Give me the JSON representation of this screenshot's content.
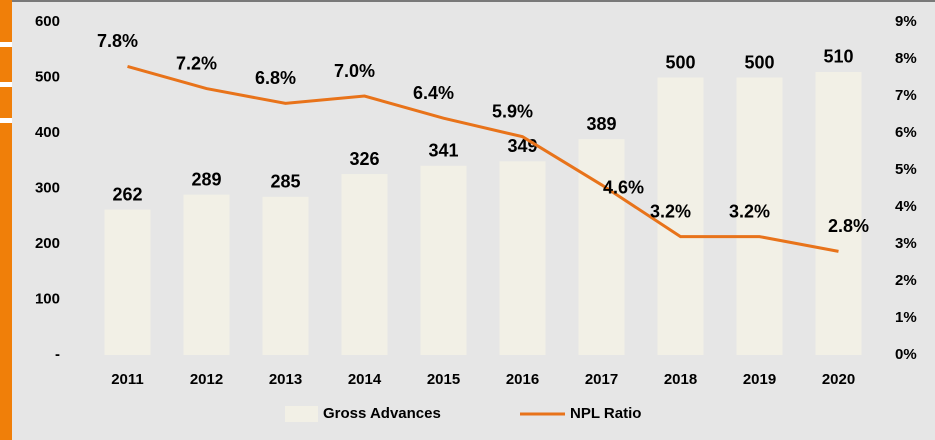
{
  "chart_data": {
    "type": "combo",
    "categories": [
      "2011",
      "2012",
      "2013",
      "2014",
      "2015",
      "2016",
      "2017",
      "2018",
      "2019",
      "2020"
    ],
    "series": [
      {
        "name": "Gross Advances",
        "type": "bar",
        "color": "#f2f0e6",
        "values": [
          262,
          289,
          285,
          326,
          341,
          349,
          389,
          500,
          500,
          510
        ]
      },
      {
        "name": "NPL Ratio",
        "type": "line",
        "axis": "y2",
        "color": "#e8731a",
        "values": [
          7.8,
          7.2,
          6.8,
          7.0,
          6.4,
          5.9,
          4.6,
          3.2,
          3.2,
          2.8
        ],
        "value_labels": [
          "7.8%",
          "7.2%",
          "6.8%",
          "7.0%",
          "6.4%",
          "5.9%",
          "4.6%",
          "3.2%",
          "3.2%",
          "2.8%"
        ]
      }
    ],
    "ylim": [
      0,
      600
    ],
    "yticks": [
      {
        "value": 0,
        "label": "-"
      },
      100,
      200,
      300,
      400,
      500,
      600
    ],
    "y2lim": [
      0,
      9
    ],
    "y2ticks": [
      {
        "value": 0,
        "label": "0%"
      },
      {
        "value": 1,
        "label": "1%"
      },
      {
        "value": 2,
        "label": "2%"
      },
      {
        "value": 3,
        "label": "3%"
      },
      {
        "value": 4,
        "label": "4%"
      },
      {
        "value": 5,
        "label": "5%"
      },
      {
        "value": 6,
        "label": "6%"
      },
      {
        "value": 7,
        "label": "7%"
      },
      {
        "value": 8,
        "label": "8%"
      },
      {
        "value": 9,
        "label": "9%"
      }
    ],
    "legend": "bottom"
  }
}
